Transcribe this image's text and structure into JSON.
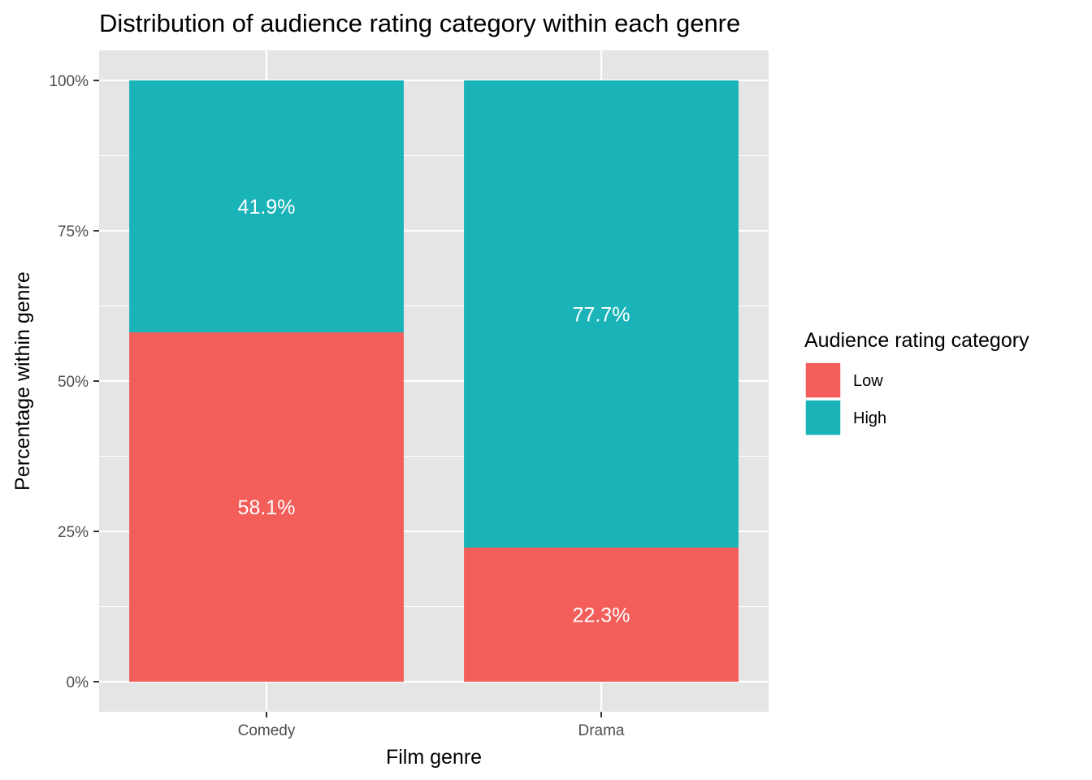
{
  "chart_data": {
    "type": "bar",
    "stacked": true,
    "title": "Distribution of audience rating category within each genre",
    "xlabel": "Film genre",
    "ylabel": "Percentage within genre",
    "categories": [
      "Comedy",
      "Drama"
    ],
    "series": [
      {
        "name": "Low",
        "color": "#F35E5A",
        "values": [
          58.1,
          22.3
        ],
        "labels": [
          "58.1%",
          "22.3%"
        ]
      },
      {
        "name": "High",
        "color": "#19B3B8",
        "values": [
          41.9,
          77.7
        ],
        "labels": [
          "41.9%",
          "77.7%"
        ]
      }
    ],
    "ylim": [
      0,
      100
    ],
    "yticks": [
      0,
      25,
      50,
      75,
      100
    ],
    "ytick_labels": [
      "0%",
      "25%",
      "50%",
      "75%",
      "100%"
    ],
    "grid": true,
    "panel_background": "#E5E5E5",
    "grid_color": "#FFFFFF",
    "legend": {
      "title": "Audience rating category",
      "position": "right",
      "entries": [
        "Low",
        "High"
      ]
    }
  }
}
